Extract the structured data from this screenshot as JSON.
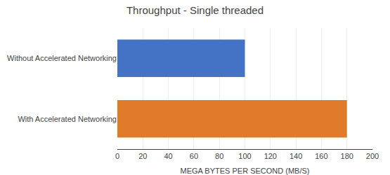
{
  "chart_data": {
    "type": "bar",
    "orientation": "horizontal",
    "title": "Throughput - Single threaded",
    "categories": [
      "Without Accelerated Networking",
      "With Accelerated Networking"
    ],
    "values": [
      100,
      180
    ],
    "colors": [
      "#4472C4",
      "#E07B2A"
    ],
    "xlabel": "MEGA BYTES PER SECOND (MB/S)",
    "xlim": [
      0,
      200
    ],
    "xticks": [
      0,
      20,
      40,
      60,
      80,
      100,
      120,
      140,
      160,
      180,
      200
    ],
    "grid": true
  }
}
